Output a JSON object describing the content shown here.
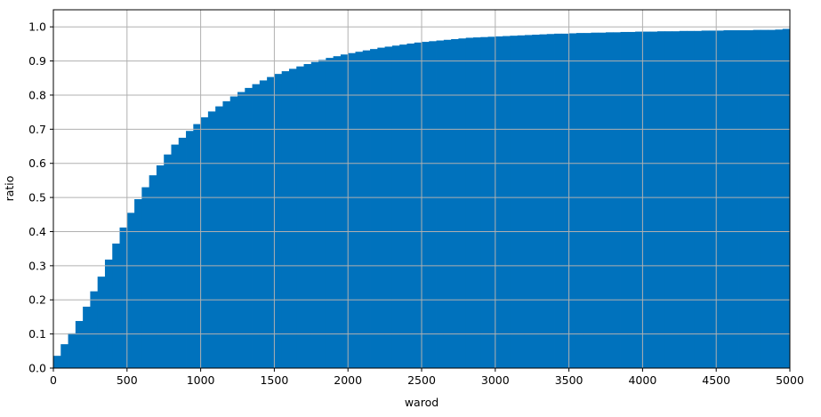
{
  "chart_data": {
    "type": "bar",
    "title": "",
    "xlabel": "warod",
    "ylabel": "ratio",
    "xlim": [
      0,
      5000
    ],
    "ylim": [
      0,
      1.05
    ],
    "grid": true,
    "bar_color": "#0072BD",
    "grid_color": "#b0b0b0",
    "bin_width": 50,
    "x_ticks": [
      0,
      500,
      1000,
      1500,
      2000,
      2500,
      3000,
      3500,
      4000,
      4500,
      5000
    ],
    "y_ticks": [
      0.0,
      0.1,
      0.2,
      0.3,
      0.4,
      0.5,
      0.6,
      0.7,
      0.8,
      0.9,
      1.0
    ],
    "x_tick_labels": [
      "0",
      "500",
      "1000",
      "1500",
      "2000",
      "2500",
      "3000",
      "3500",
      "4000",
      "4500",
      "5000"
    ],
    "y_tick_labels": [
      "0.0",
      "0.1",
      "0.2",
      "0.3",
      "0.4",
      "0.5",
      "0.6",
      "0.7",
      "0.8",
      "0.9",
      "1.0"
    ],
    "x": [
      0,
      50,
      100,
      150,
      200,
      250,
      300,
      350,
      400,
      450,
      500,
      550,
      600,
      650,
      700,
      750,
      800,
      850,
      900,
      950,
      1000,
      1050,
      1100,
      1150,
      1200,
      1250,
      1300,
      1350,
      1400,
      1450,
      1500,
      1550,
      1600,
      1650,
      1700,
      1750,
      1800,
      1850,
      1900,
      1950,
      2000,
      2050,
      2100,
      2150,
      2200,
      2250,
      2300,
      2350,
      2400,
      2450,
      2500,
      2550,
      2600,
      2650,
      2700,
      2750,
      2800,
      2850,
      2900,
      2950,
      3000,
      3050,
      3100,
      3150,
      3200,
      3250,
      3300,
      3350,
      3400,
      3450,
      3500,
      3550,
      3600,
      3650,
      3700,
      3750,
      3800,
      3850,
      3900,
      3950,
      4000,
      4050,
      4100,
      4150,
      4200,
      4250,
      4300,
      4350,
      4400,
      4450,
      4500,
      4550,
      4600,
      4650,
      4700,
      4750,
      4800,
      4850,
      4900,
      4950
    ],
    "values": [
      0.036,
      0.07,
      0.102,
      0.138,
      0.18,
      0.225,
      0.268,
      0.318,
      0.365,
      0.412,
      0.455,
      0.495,
      0.53,
      0.565,
      0.594,
      0.626,
      0.655,
      0.675,
      0.695,
      0.715,
      0.735,
      0.752,
      0.767,
      0.782,
      0.796,
      0.809,
      0.821,
      0.832,
      0.843,
      0.853,
      0.862,
      0.87,
      0.877,
      0.884,
      0.891,
      0.897,
      0.903,
      0.909,
      0.914,
      0.919,
      0.923,
      0.927,
      0.931,
      0.935,
      0.939,
      0.942,
      0.945,
      0.948,
      0.951,
      0.954,
      0.956,
      0.958,
      0.96,
      0.962,
      0.964,
      0.966,
      0.968,
      0.969,
      0.97,
      0.971,
      0.972,
      0.973,
      0.974,
      0.975,
      0.976,
      0.977,
      0.978,
      0.979,
      0.98,
      0.98,
      0.981,
      0.982,
      0.982,
      0.983,
      0.983,
      0.984,
      0.984,
      0.985,
      0.985,
      0.986,
      0.986,
      0.986,
      0.987,
      0.987,
      0.987,
      0.988,
      0.988,
      0.988,
      0.989,
      0.989,
      0.989,
      0.99,
      0.99,
      0.99,
      0.99,
      0.991,
      0.991,
      0.991,
      0.992,
      0.994
    ]
  }
}
